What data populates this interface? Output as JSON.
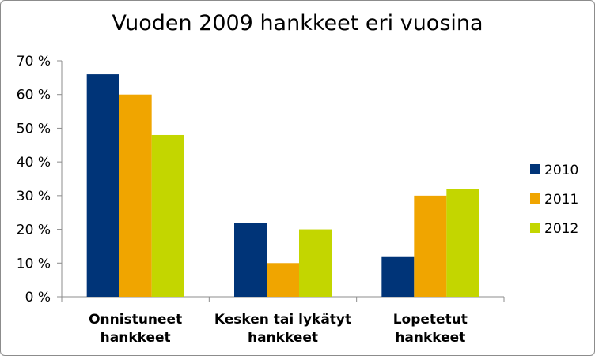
{
  "chart_data": {
    "type": "bar",
    "title": "Vuoden 2009 hankkeet eri vuosina",
    "xlabel": "",
    "ylabel": "",
    "ylim": [
      0,
      70
    ],
    "y_ticks": [
      "0 %",
      "10 %",
      "20 %",
      "30 %",
      "40 %",
      "50 %",
      "60 %",
      "70 %"
    ],
    "y_unit": "%",
    "grid": false,
    "legend_position": "right",
    "categories": [
      [
        "Onnistuneet",
        "hankkeet"
      ],
      [
        "Kesken tai lykätyt",
        "hankkeet"
      ],
      [
        "Lopetetut",
        "hankkeet"
      ]
    ],
    "series": [
      {
        "name": "2010",
        "color": "#003478",
        "values": [
          66,
          22,
          12
        ]
      },
      {
        "name": "2011",
        "color": "#F0A500",
        "values": [
          60,
          10,
          30
        ]
      },
      {
        "name": "2012",
        "color": "#C3D600",
        "values": [
          48,
          20,
          32
        ]
      }
    ]
  }
}
